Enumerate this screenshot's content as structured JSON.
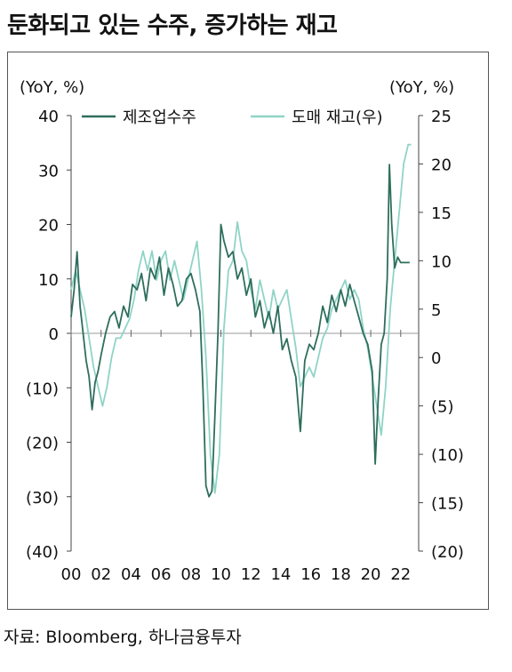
{
  "header": {
    "title": "둔화되고 있는 수주, 증가하는 재고"
  },
  "footer": {
    "source": "자료: Bloomberg, 하나금융투자"
  },
  "chart_data": {
    "type": "line",
    "left_unit": "(YoY, %)",
    "right_unit": "(YoY, %)",
    "left_axis": {
      "ylim": [
        -40,
        40
      ],
      "ticks": [
        40,
        30,
        20,
        10,
        0,
        -10,
        -20,
        -30,
        -40
      ],
      "tick_labels": [
        "40",
        "30",
        "20",
        "10",
        "0",
        "(10)",
        "(20)",
        "(30)",
        "(40)"
      ]
    },
    "right_axis": {
      "ylim": [
        -20,
        25
      ],
      "ticks": [
        25,
        20,
        15,
        10,
        5,
        0,
        -5,
        -10,
        -15,
        -20
      ],
      "tick_labels": [
        "25",
        "20",
        "15",
        "10",
        "5",
        "0",
        "(5)",
        "(10)",
        "(15)",
        "(20)"
      ]
    },
    "x_axis": {
      "xlim": [
        2000,
        2023.2
      ],
      "ticks": [
        2000,
        2002,
        2004,
        2006,
        2008,
        2010,
        2012,
        2014,
        2016,
        2018,
        2020,
        2022
      ],
      "tick_labels": [
        "00",
        "02",
        "04",
        "06",
        "08",
        "10",
        "12",
        "14",
        "16",
        "18",
        "20",
        "22"
      ]
    },
    "legend": {
      "placement": "top"
    },
    "series": [
      {
        "name": "제조업수주",
        "axis": "left",
        "color": "#2e6e5c",
        "x": [
          2000.0,
          2000.2,
          2000.4,
          2000.6,
          2000.8,
          2001.0,
          2001.2,
          2001.4,
          2001.6,
          2001.8,
          2002.0,
          2002.3,
          2002.6,
          2002.9,
          2003.2,
          2003.5,
          2003.8,
          2004.1,
          2004.4,
          2004.7,
          2005.0,
          2005.3,
          2005.6,
          2005.9,
          2006.2,
          2006.5,
          2006.8,
          2007.1,
          2007.4,
          2007.7,
          2008.0,
          2008.3,
          2008.6,
          2008.8,
          2009.0,
          2009.2,
          2009.4,
          2009.6,
          2009.8,
          2010.0,
          2010.2,
          2010.5,
          2010.8,
          2011.1,
          2011.4,
          2011.7,
          2012.0,
          2012.3,
          2012.6,
          2012.9,
          2013.2,
          2013.5,
          2013.8,
          2014.1,
          2014.4,
          2014.7,
          2015.0,
          2015.3,
          2015.6,
          2015.9,
          2016.2,
          2016.5,
          2016.8,
          2017.1,
          2017.4,
          2017.7,
          2018.0,
          2018.3,
          2018.6,
          2018.9,
          2019.2,
          2019.5,
          2019.8,
          2020.1,
          2020.3,
          2020.5,
          2020.7,
          2020.9,
          2021.1,
          2021.25,
          2021.4,
          2021.6,
          2021.8,
          2022.0,
          2022.3,
          2022.6
        ],
        "values": [
          3,
          8,
          15,
          5,
          0,
          -5,
          -8,
          -14,
          -9,
          -7,
          -4,
          0,
          3,
          4,
          1,
          5,
          3,
          9,
          8,
          11,
          6,
          12,
          10,
          14,
          7,
          12,
          9,
          5,
          6,
          10,
          11,
          8,
          4,
          -10,
          -28,
          -30,
          -29,
          -15,
          0,
          20,
          17,
          14,
          15,
          10,
          12,
          7,
          10,
          3,
          6,
          1,
          4,
          0,
          5,
          -3,
          -1,
          -5,
          -8,
          -18,
          -5,
          -2,
          -3,
          0,
          5,
          2,
          7,
          4,
          8,
          5,
          9,
          6,
          3,
          0,
          -2,
          -7,
          -24,
          -12,
          -2,
          0,
          10,
          31,
          20,
          12,
          14,
          13,
          13,
          13
        ]
      },
      {
        "name": "도매 재고(우)",
        "axis": "right",
        "color": "#8fd4c6",
        "x": [
          2000.0,
          2000.3,
          2000.6,
          2000.9,
          2001.2,
          2001.5,
          2001.8,
          2002.1,
          2002.4,
          2002.7,
          2003.0,
          2003.3,
          2003.6,
          2003.9,
          2004.2,
          2004.5,
          2004.8,
          2005.1,
          2005.4,
          2005.7,
          2006.0,
          2006.3,
          2006.6,
          2006.9,
          2007.2,
          2007.5,
          2007.8,
          2008.1,
          2008.4,
          2008.7,
          2009.0,
          2009.3,
          2009.6,
          2009.9,
          2010.2,
          2010.5,
          2010.8,
          2011.1,
          2011.4,
          2011.7,
          2012.0,
          2012.3,
          2012.6,
          2012.9,
          2013.2,
          2013.5,
          2013.8,
          2014.1,
          2014.4,
          2014.7,
          2015.0,
          2015.3,
          2015.6,
          2015.9,
          2016.2,
          2016.5,
          2016.8,
          2017.1,
          2017.4,
          2017.7,
          2018.0,
          2018.3,
          2018.6,
          2018.9,
          2019.2,
          2019.5,
          2019.8,
          2020.1,
          2020.4,
          2020.7,
          2021.0,
          2021.3,
          2021.6,
          2021.9,
          2022.2,
          2022.5,
          2022.7
        ],
        "values": [
          7,
          9,
          7,
          5,
          2,
          -1,
          -3,
          -5,
          -3,
          0,
          2,
          2,
          3,
          4,
          6,
          9,
          11,
          9,
          11,
          8,
          10,
          11,
          8,
          10,
          8,
          6,
          8,
          10,
          12,
          7,
          0,
          -10,
          -14,
          -10,
          3,
          9,
          10,
          14,
          11,
          10,
          7,
          5,
          8,
          6,
          4,
          7,
          5,
          6,
          7,
          4,
          1,
          -3,
          -2,
          -1,
          -2,
          0,
          2,
          3,
          5,
          6,
          7,
          8,
          6,
          7,
          6,
          3,
          1,
          -2,
          -5,
          -8,
          -3,
          5,
          10,
          15,
          20,
          22,
          22
        ]
      }
    ]
  }
}
